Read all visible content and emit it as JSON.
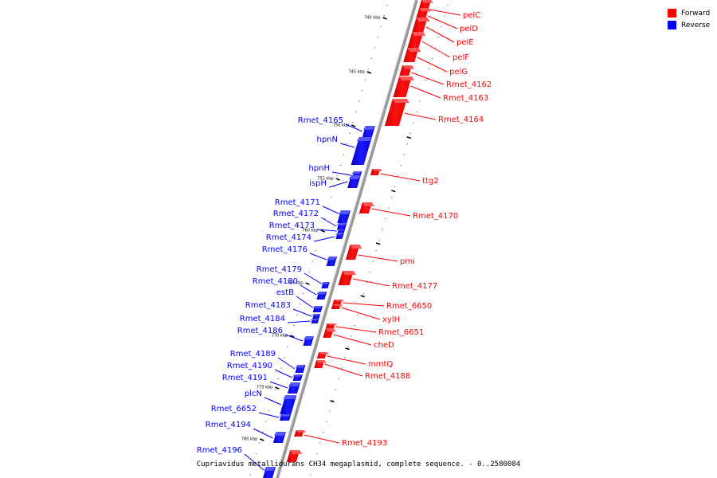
{
  "caption": "Cupriavidus metallidurans CH34 megaplasmid, complete sequence. - 0..2580084",
  "legend": [
    {
      "label": "Forward",
      "color": "#ff0000"
    },
    {
      "label": "Reverse",
      "color": "#0000ff"
    }
  ],
  "ticks": [
    "740 kbp",
    "745 kbp",
    "750 kbp",
    "755 kbp",
    "760 kbp",
    "765 kbp",
    "770 kbp",
    "775 kbp",
    "780 kbp"
  ],
  "forward_genes": [
    "pelC",
    "pelD",
    "pelE",
    "pelF",
    "pelG",
    "Rmet_4162",
    "Rmet_4163",
    "Rmet_4164",
    "ttg2",
    "Rmet_4170",
    "pmi",
    "Rmet_4177",
    "Rmet_6650",
    "xylH",
    "Rmet_6651",
    "cheD",
    "mmtQ",
    "Rmet_4188",
    "Rmet_4193"
  ],
  "reverse_genes": [
    "Rmet_4165",
    "hpnN",
    "hpnH",
    "ispH",
    "Rmet_4171",
    "Rmet_4172",
    "Rmet_4173",
    "Rmet_4174",
    "Rmet_4176",
    "Rmet_4179",
    "Rmet_4180",
    "estB",
    "Rmet_4183",
    "Rmet_4184",
    "Rmet_4186",
    "Rmet_4189",
    "Rmet_4190",
    "Rmet_4191",
    "plcN",
    "Rmet_6652",
    "Rmet_4194",
    "Rmet_4196"
  ]
}
